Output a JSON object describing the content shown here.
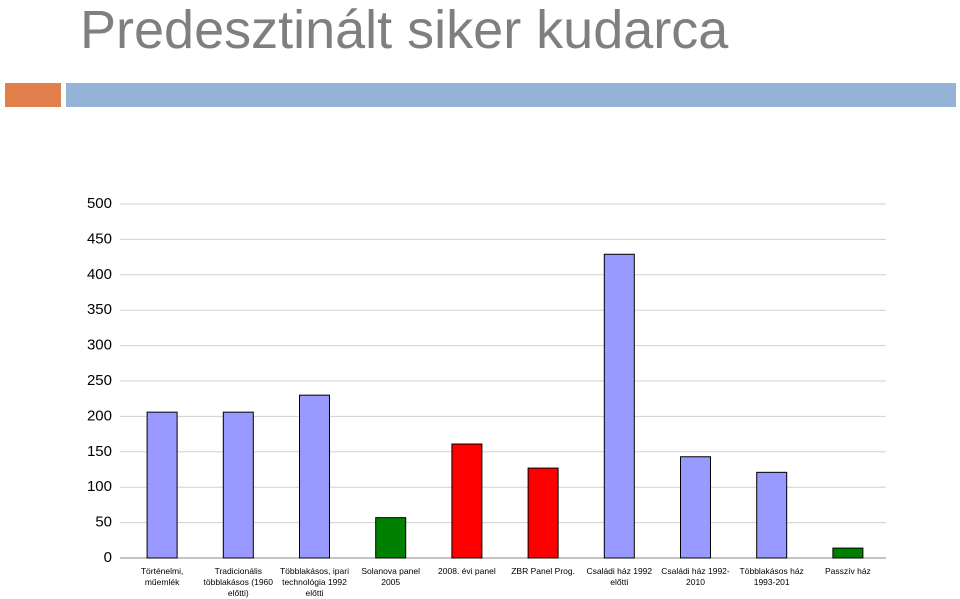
{
  "chart_data": {
    "type": "bar",
    "title": "Predesztinált siker kudarca",
    "categories": [
      "Történelmi, műemlék",
      "Tradicionális többlakásos (1960 előtti)",
      "Többlakásos, ipari technológia 1992 előtti",
      "Solanova panel 2005",
      "2008. évi panel",
      "ZBR Panel Prog.",
      "Családi ház 1992 előtti",
      "Családi ház 1992-2010",
      "Többlakásos ház 1993-201",
      "Passzív ház"
    ],
    "values": [
      206,
      206,
      230,
      57,
      161,
      127,
      429,
      143,
      121,
      14
    ],
    "colors": [
      "#9999ff",
      "#9999ff",
      "#9999ff",
      "#008000",
      "#ff0000",
      "#ff0000",
      "#9999ff",
      "#9999ff",
      "#9999ff",
      "#008000"
    ],
    "ylim": [
      0,
      500
    ],
    "yticks": [
      0,
      50,
      100,
      150,
      200,
      250,
      300,
      350,
      400,
      450,
      500
    ],
    "grid": true
  }
}
